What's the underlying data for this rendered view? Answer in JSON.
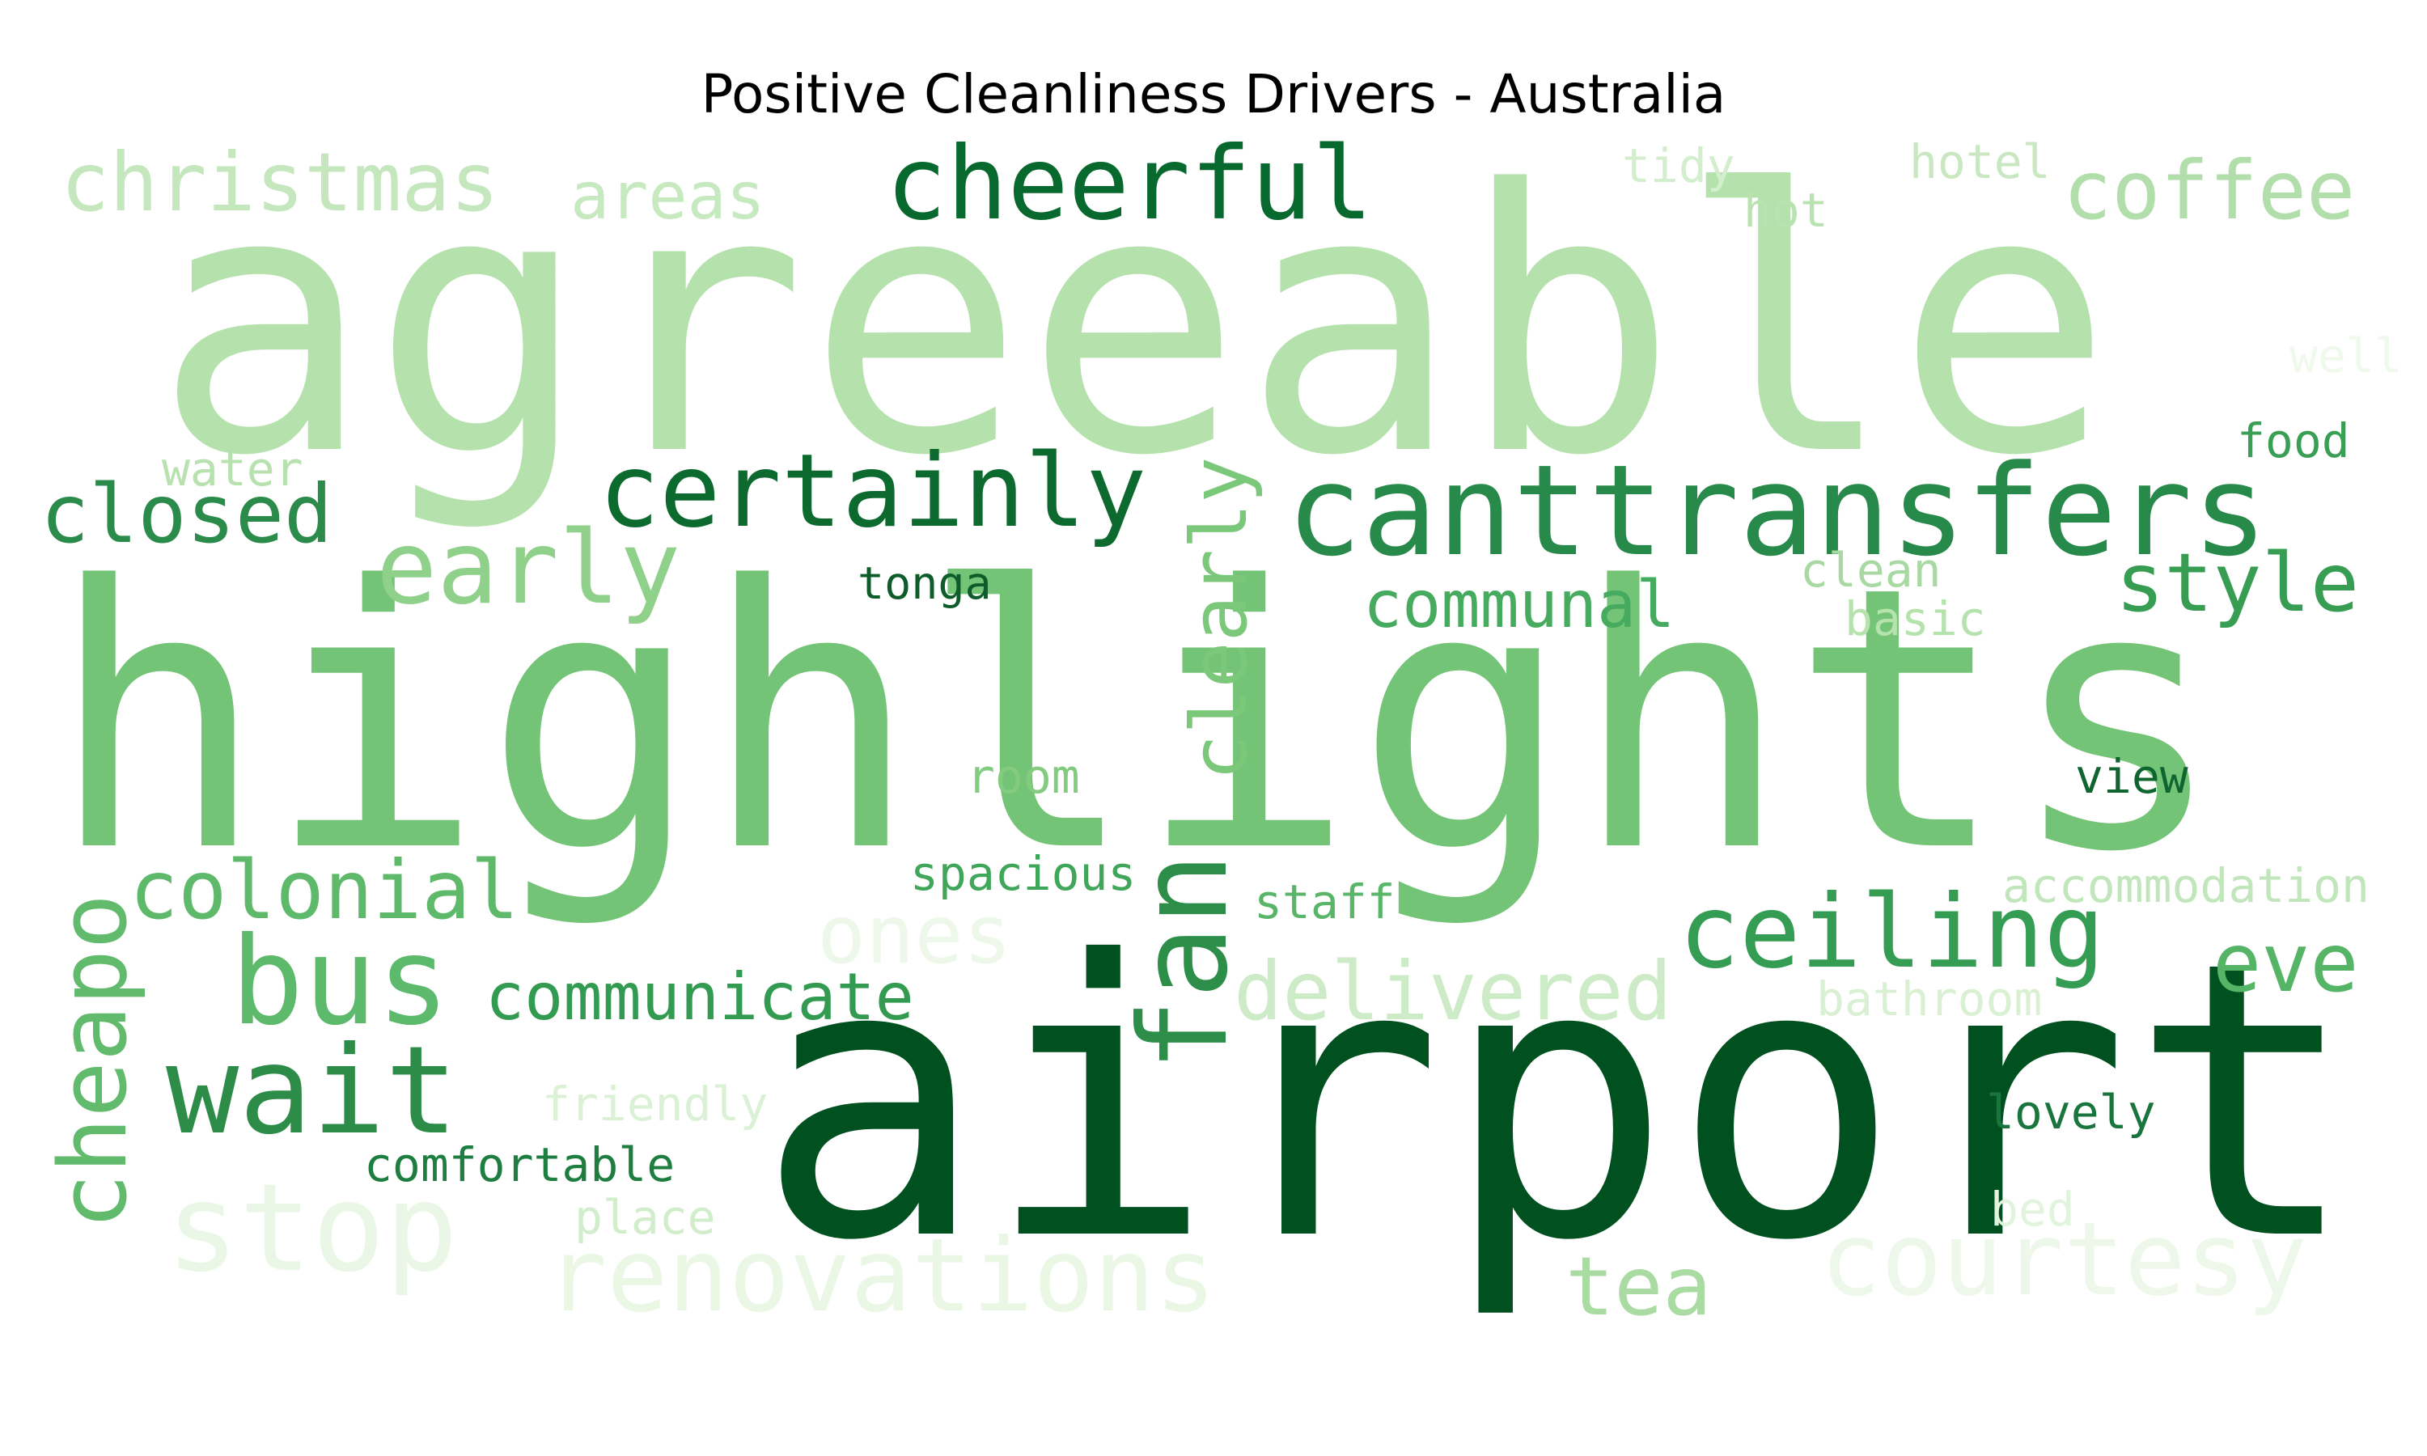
{
  "chart_data": {
    "type": "wordcloud",
    "title": "Positive Cleanliness Drivers - Australia",
    "colormap": "Greens",
    "background": "#ffffff",
    "words": [
      {
        "text": "airport",
        "weight": 1.0,
        "color": "#00511f"
      },
      {
        "text": "highlights",
        "weight": 0.96,
        "color": "#73c476"
      },
      {
        "text": "agreeable",
        "weight": 0.95,
        "color": "#b5e1ad"
      },
      {
        "text": "canttransfers",
        "weight": 0.38,
        "color": "#27894a"
      },
      {
        "text": "ceiling",
        "weight": 0.34,
        "color": "#349d53"
      },
      {
        "text": "wait",
        "weight": 0.34,
        "color": "#2d8c48"
      },
      {
        "text": "stop",
        "weight": 0.32,
        "color": "#ebf7e6"
      },
      {
        "text": "bus",
        "weight": 0.31,
        "color": "#5db96b"
      },
      {
        "text": "certainly",
        "weight": 0.3,
        "color": "#0d6a2f"
      },
      {
        "text": "fan",
        "weight": 0.3,
        "color": "#2c8e48"
      },
      {
        "text": "cheerful",
        "weight": 0.3,
        "color": "#08692e"
      },
      {
        "text": "closed",
        "weight": 0.28,
        "color": "#2b8b4a"
      },
      {
        "text": "christmas",
        "weight": 0.28,
        "color": "#c5e7bd"
      },
      {
        "text": "coffee",
        "weight": 0.28,
        "color": "#b2deab"
      },
      {
        "text": "early",
        "weight": 0.28,
        "color": "#8fd08a"
      },
      {
        "text": "renovations",
        "weight": 0.28,
        "color": "#eaf7e5"
      },
      {
        "text": "courtesy",
        "weight": 0.26,
        "color": "#eef8ea"
      },
      {
        "text": "cheapo",
        "weight": 0.26,
        "color": "#62bb6d"
      },
      {
        "text": "delivered",
        "weight": 0.26,
        "color": "#cdebc6"
      },
      {
        "text": "colonial",
        "weight": 0.24,
        "color": "#5fb96a"
      },
      {
        "text": "clearly",
        "weight": 0.24,
        "color": "#7bc87b"
      },
      {
        "text": "eve",
        "weight": 0.24,
        "color": "#56b466"
      },
      {
        "text": "ones",
        "weight": 0.24,
        "color": "#eef8ea"
      },
      {
        "text": "tea",
        "weight": 0.24,
        "color": "#a9dba2"
      },
      {
        "text": "communicate",
        "weight": 0.22,
        "color": "#329b51"
      },
      {
        "text": "communal",
        "weight": 0.22,
        "color": "#47ab5f"
      },
      {
        "text": "style",
        "weight": 0.22,
        "color": "#379d53"
      },
      {
        "text": "areas",
        "weight": 0.2,
        "color": "#c7e9c0"
      },
      {
        "text": "friendly",
        "weight": 0.15,
        "color": "#dbf1d5"
      },
      {
        "text": "comfortable",
        "weight": 0.14,
        "color": "#1d7e3f"
      },
      {
        "text": "spacious",
        "weight": 0.14,
        "color": "#3fa65a"
      },
      {
        "text": "accommodation",
        "weight": 0.14,
        "color": "#c2e6bc"
      },
      {
        "text": "place",
        "weight": 0.14,
        "color": "#d2edcc"
      },
      {
        "text": "bathroom",
        "weight": 0.14,
        "color": "#d9f0d3"
      },
      {
        "text": "lovely",
        "weight": 0.14,
        "color": "#19753d"
      },
      {
        "text": "staff",
        "weight": 0.14,
        "color": "#59b568"
      },
      {
        "text": "tonga",
        "weight": 0.14,
        "color": "#0d5c2a"
      },
      {
        "text": "clean",
        "weight": 0.14,
        "color": "#a9d9a3"
      },
      {
        "text": "basic",
        "weight": 0.14,
        "color": "#b6e2ae"
      },
      {
        "text": "room",
        "weight": 0.14,
        "color": "#82cb7f"
      },
      {
        "text": "view",
        "weight": 0.14,
        "color": "#0f652f"
      },
      {
        "text": "food",
        "weight": 0.14,
        "color": "#3a9e54"
      },
      {
        "text": "water",
        "weight": 0.14,
        "color": "#b7e1ae"
      },
      {
        "text": "tidy",
        "weight": 0.14,
        "color": "#d3eecc"
      },
      {
        "text": "hotel",
        "weight": 0.14,
        "color": "#c9e8c1"
      },
      {
        "text": "hot",
        "weight": 0.14,
        "color": "#b9e2b1"
      },
      {
        "text": "bed",
        "weight": 0.14,
        "color": "#e3f4de"
      },
      {
        "text": "well",
        "weight": 0.14,
        "color": "#eff9ec"
      }
    ]
  }
}
